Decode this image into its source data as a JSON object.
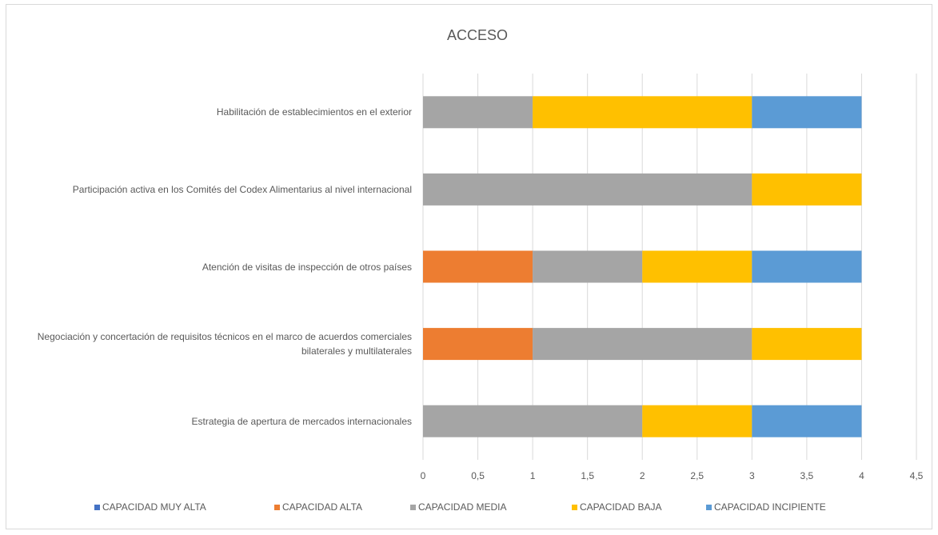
{
  "chart_data": {
    "type": "stacked_bar_horizontal",
    "title": "ACCESO",
    "categories": [
      "Habilitación de establecimientos en el exterior",
      "Participación activa en los Comités del Codex Alimentarius al nivel internacional",
      "Atención de visitas de inspección de otros países",
      "Negociación y concertación de requisitos técnicos en el marco de acuerdos comerciales bilaterales  y multilaterales",
      "Estrategia  de apertura de mercados internacionales"
    ],
    "series": [
      {
        "name": "CAPACIDAD MUY ALTA",
        "color": "#4472c4",
        "values": [
          0,
          0,
          0,
          0,
          0
        ]
      },
      {
        "name": "CAPACIDAD ALTA",
        "color": "#ed7d31",
        "values": [
          0,
          0,
          1,
          1,
          0
        ]
      },
      {
        "name": "CAPACIDAD MEDIA",
        "color": "#a5a5a5",
        "values": [
          1,
          3,
          1,
          2,
          2
        ]
      },
      {
        "name": "CAPACIDAD BAJA",
        "color": "#ffc000",
        "values": [
          2,
          1,
          1,
          1,
          1
        ]
      },
      {
        "name": "CAPACIDAD INCIPIENTE",
        "color": "#5b9bd5",
        "values": [
          1,
          0,
          1,
          0,
          1
        ]
      }
    ],
    "xlim": [
      0,
      4.5
    ],
    "xticks": [
      0,
      {
        "value": 0.5,
        "label": "0,5"
      },
      1,
      {
        "value": 1.5,
        "label": "1,5"
      },
      2,
      {
        "value": 2.5,
        "label": "2,5"
      },
      3,
      {
        "value": 3.5,
        "label": "3,5"
      },
      4,
      {
        "value": 4.5,
        "label": "4,5"
      }
    ],
    "grid": true,
    "legend": "bottom"
  }
}
